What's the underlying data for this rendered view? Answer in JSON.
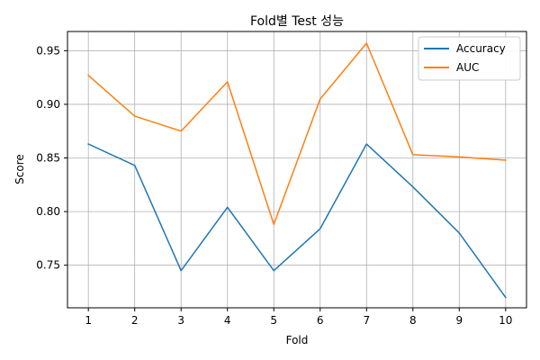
{
  "chart_data": {
    "type": "line",
    "title": "Fold별 Test 성능",
    "xlabel": "Fold",
    "ylabel": "Score",
    "x": [
      1,
      2,
      3,
      4,
      5,
      6,
      7,
      8,
      9,
      10
    ],
    "xlim": [
      0.55,
      10.45
    ],
    "ylim": [
      0.7103,
      0.9679
    ],
    "yticks": [
      0.75,
      0.8,
      0.85,
      0.9,
      0.95
    ],
    "ytick_labels": [
      "0.75",
      "0.80",
      "0.85",
      "0.90",
      "0.95"
    ],
    "xtick_labels": [
      "1",
      "2",
      "3",
      "4",
      "5",
      "6",
      "7",
      "8",
      "9",
      "10"
    ],
    "grid": true,
    "legend_position": "top-right",
    "series": [
      {
        "name": "Accuracy",
        "color": "#1f77b4",
        "values": [
          0.863,
          0.843,
          0.745,
          0.804,
          0.745,
          0.784,
          0.863,
          0.823,
          0.78,
          0.72
        ]
      },
      {
        "name": "AUC",
        "color": "#ff7f0e",
        "values": [
          0.927,
          0.889,
          0.875,
          0.921,
          0.788,
          0.905,
          0.957,
          0.853,
          0.851,
          0.848
        ]
      }
    ]
  }
}
